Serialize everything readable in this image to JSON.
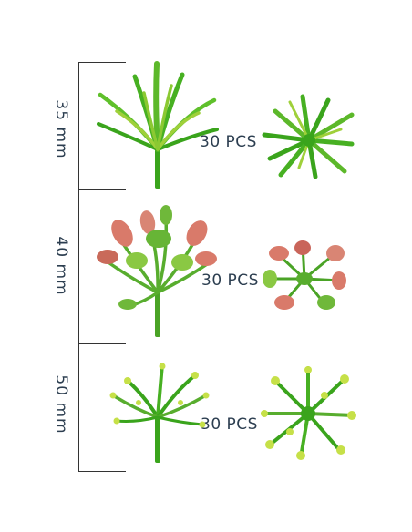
{
  "sections": [
    {
      "size_label": "35 mm",
      "quantity_label": "30 PCS",
      "variant": "grass-tuft"
    },
    {
      "size_label": "40 mm",
      "quantity_label": "30 PCS",
      "variant": "red-tipped-leaves"
    },
    {
      "size_label": "50 mm",
      "quantity_label": "30 PCS",
      "variant": "fern-shrub"
    }
  ],
  "colors": {
    "scale_line": "#333333",
    "text": "#2c3e50",
    "leaf_green": "#3aa41c",
    "leaf_light": "#9fd03a",
    "leaf_pink": "#d97a6a"
  }
}
